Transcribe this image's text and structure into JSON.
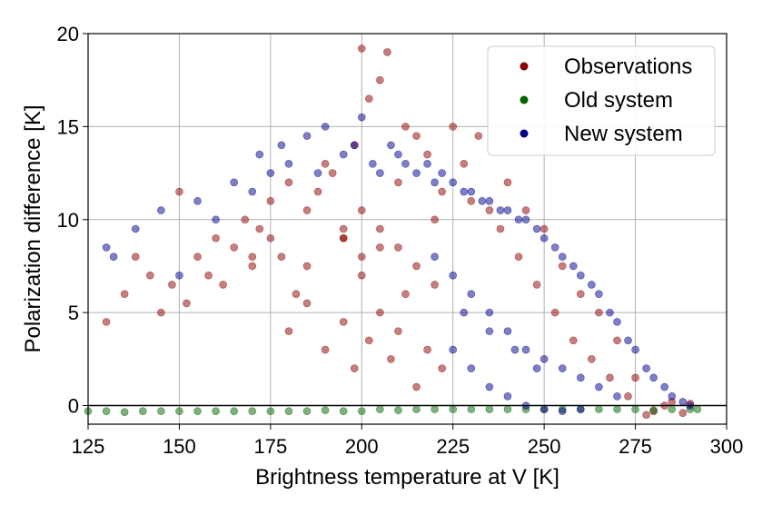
{
  "chart_data": {
    "type": "scatter",
    "xlabel": "Brightness temperature at V [K]",
    "ylabel": "Polarization difference [K]",
    "xlim": [
      125,
      300
    ],
    "ylim": [
      -1,
      20
    ],
    "xticks": [
      125,
      150,
      175,
      200,
      225,
      250,
      275,
      300
    ],
    "yticks": [
      0,
      5,
      10,
      15,
      20
    ],
    "grid": true,
    "zero_line": 0,
    "legend_position": "top-right",
    "series": [
      {
        "name": "Observations",
        "color": "#8b0000",
        "x": [
          130,
          135,
          138,
          142,
          145,
          148,
          150,
          152,
          155,
          158,
          160,
          162,
          165,
          168,
          170,
          172,
          175,
          178,
          180,
          182,
          185,
          188,
          190,
          192,
          195,
          198,
          200,
          200,
          202,
          205,
          207,
          210,
          212,
          215,
          218,
          220,
          222,
          225,
          228,
          230,
          232,
          235,
          238,
          240,
          243,
          245,
          248,
          250,
          253,
          255,
          258,
          260,
          263,
          265,
          268,
          270,
          273,
          275,
          278,
          280,
          283,
          285,
          288,
          290,
          180,
          185,
          190,
          195,
          198,
          202,
          205,
          208,
          210,
          212,
          215,
          218,
          222,
          195,
          200,
          205,
          210,
          215,
          220,
          170,
          175,
          185,
          195,
          205,
          200
        ],
        "y": [
          4.5,
          6.0,
          8.0,
          7.0,
          5.0,
          6.5,
          11.5,
          5.5,
          8.0,
          7.0,
          9.0,
          6.5,
          8.5,
          10.0,
          7.5,
          9.5,
          11.0,
          8.0,
          12.0,
          6.0,
          10.5,
          11.5,
          13.0,
          12.5,
          9.0,
          14.0,
          19.2,
          7.0,
          16.5,
          17.5,
          19.0,
          12.0,
          15.0,
          14.5,
          13.5,
          10.0,
          11.5,
          15.0,
          13.0,
          11.0,
          14.5,
          10.5,
          9.5,
          12.0,
          8.0,
          10.5,
          6.5,
          9.5,
          5.0,
          7.5,
          3.5,
          6.0,
          2.5,
          5.0,
          1.5,
          3.5,
          0.5,
          1.5,
          -0.5,
          -0.3,
          0.0,
          0.2,
          -0.4,
          0.1,
          4.0,
          5.5,
          3.0,
          4.5,
          2.0,
          3.5,
          5.0,
          2.5,
          4.0,
          6.0,
          1.0,
          3.0,
          2.0,
          9.0,
          8.0,
          9.5,
          8.5,
          7.5,
          6.5,
          8.0,
          9.0,
          7.5,
          9.5,
          8.5,
          10.5
        ]
      },
      {
        "name": "Old system",
        "color": "#006400",
        "x": [
          125,
          130,
          135,
          140,
          145,
          150,
          155,
          160,
          165,
          170,
          175,
          180,
          185,
          190,
          195,
          200,
          205,
          210,
          215,
          220,
          225,
          230,
          235,
          240,
          245,
          250,
          255,
          260,
          265,
          270,
          275,
          280,
          285,
          290,
          292
        ],
        "y": [
          -0.3,
          -0.3,
          -0.35,
          -0.3,
          -0.3,
          -0.3,
          -0.3,
          -0.3,
          -0.3,
          -0.3,
          -0.3,
          -0.3,
          -0.3,
          -0.25,
          -0.3,
          -0.3,
          -0.2,
          -0.25,
          -0.2,
          -0.2,
          -0.2,
          -0.2,
          -0.2,
          -0.2,
          -0.2,
          -0.2,
          -0.2,
          -0.2,
          -0.2,
          -0.2,
          -0.2,
          -0.25,
          -0.2,
          -0.2,
          -0.2
        ]
      },
      {
        "name": "New system",
        "color": "#00008b",
        "x": [
          130,
          132,
          138,
          145,
          150,
          155,
          160,
          165,
          170,
          172,
          175,
          178,
          180,
          185,
          188,
          190,
          195,
          198,
          200,
          203,
          205,
          208,
          210,
          212,
          215,
          218,
          220,
          222,
          225,
          228,
          230,
          233,
          235,
          238,
          240,
          243,
          245,
          248,
          250,
          253,
          255,
          258,
          260,
          263,
          265,
          268,
          270,
          273,
          275,
          278,
          280,
          283,
          285,
          288,
          290,
          220,
          225,
          230,
          235,
          240,
          245,
          250,
          255,
          260,
          265,
          270,
          225,
          230,
          235,
          240,
          245,
          250,
          255,
          260,
          228,
          235,
          242,
          248
        ],
        "y": [
          8.5,
          8.0,
          9.5,
          10.5,
          7.0,
          11.0,
          10.0,
          12.0,
          11.5,
          13.5,
          12.5,
          14.0,
          13.0,
          14.5,
          12.5,
          15.0,
          13.5,
          14.0,
          15.5,
          13.0,
          12.5,
          14.0,
          13.5,
          13.0,
          12.5,
          13.0,
          12.0,
          12.5,
          12.0,
          11.5,
          11.5,
          11.0,
          11.0,
          10.5,
          10.5,
          10.0,
          10.0,
          9.5,
          9.0,
          8.5,
          8.0,
          7.5,
          7.0,
          6.5,
          6.0,
          5.0,
          4.5,
          3.5,
          3.0,
          2.0,
          1.5,
          1.0,
          0.5,
          0.2,
          0.0,
          8.0,
          7.0,
          6.0,
          5.0,
          4.0,
          3.0,
          2.5,
          2.0,
          1.5,
          1.0,
          0.5,
          3.0,
          2.0,
          1.0,
          0.5,
          0.0,
          -0.2,
          -0.3,
          -0.2,
          5.0,
          4.0,
          3.0,
          2.0
        ]
      }
    ]
  }
}
